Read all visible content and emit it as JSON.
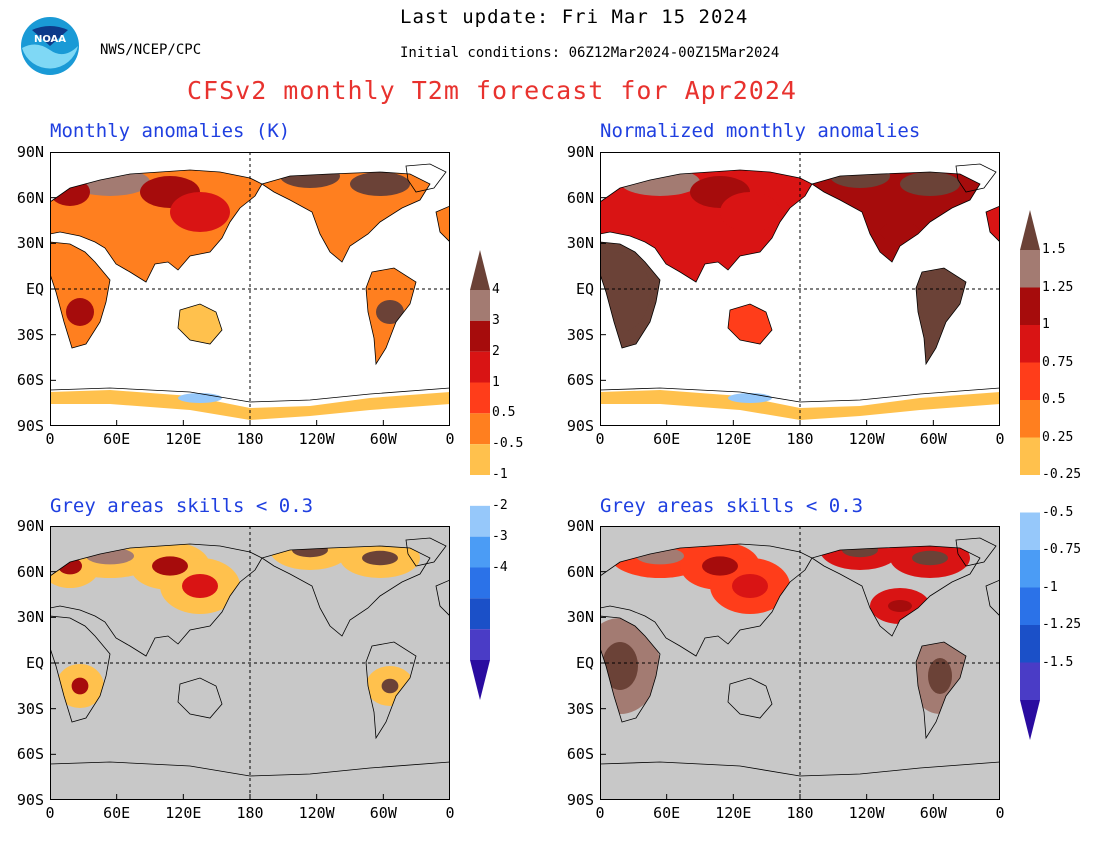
{
  "header": {
    "last_update": "Last update: Fri Mar 15 2024",
    "initial_conditions": "Initial conditions: 06Z12Mar2024-00Z15Mar2024",
    "org": "NWS/NCEP/CPC",
    "logo_text": "NOAA",
    "title": "CFSv2 monthly T2m forecast for Apr2024"
  },
  "panels": [
    {
      "title": "Monthly anomalies (K)",
      "masked": false
    },
    {
      "title": "Normalized monthly anomalies",
      "masked": false
    },
    {
      "title": "Grey areas skills < 0.3",
      "masked": true
    },
    {
      "title": "Grey areas skills < 0.3",
      "masked": true
    }
  ],
  "axes": {
    "lat_labels": [
      "90N",
      "60N",
      "30N",
      "EQ",
      "30S",
      "60S",
      "90S"
    ],
    "lon_labels": [
      "0",
      "60E",
      "120E",
      "180",
      "120W",
      "60W",
      "0"
    ]
  },
  "colorbars": [
    {
      "labels": [
        "4",
        "3",
        "2",
        "1",
        "0.5",
        "-0.5",
        "-1",
        "-2",
        "-3",
        "-4"
      ]
    },
    {
      "labels": [
        "1.5",
        "1.25",
        "1",
        "0.75",
        "0.5",
        "0.25",
        "-0.25",
        "-0.5",
        "-0.75",
        "-1",
        "-1.25",
        "-1.5"
      ]
    }
  ],
  "colors": {
    "warm": [
      "#ffc14d",
      "#ff7f1f",
      "#ff3d1a",
      "#d91414",
      "#a60c0c",
      "#a37b72",
      "#6b4237"
    ],
    "white": "#ffffff",
    "cold": [
      "#96c8fa",
      "#4b9cf5",
      "#2b72e8",
      "#1b50c8",
      "#4a3cc6",
      "#2a0ca0"
    ],
    "grey_mask": "#c8c8c8",
    "title": "#e8322e",
    "panel_title": "#1f3fe0"
  }
}
